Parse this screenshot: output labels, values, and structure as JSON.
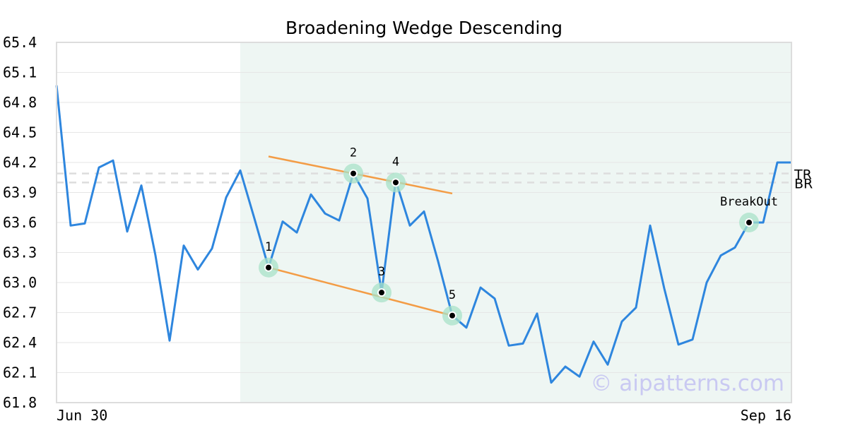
{
  "chart_data": {
    "type": "line",
    "title": "Broadening Wedge Descending",
    "ylim": [
      61.8,
      65.4
    ],
    "y_ticks": [
      "65.4",
      "65.1",
      "64.8",
      "64.5",
      "64.2",
      "63.9",
      "63.6",
      "63.3",
      "63.0",
      "62.7",
      "62.4",
      "62.1",
      "61.8"
    ],
    "x_tick_labels": [
      "Jun 30",
      "Sep 16"
    ],
    "series": [
      {
        "color": "#2e86de",
        "values": [
          64.97,
          63.57,
          63.59,
          64.15,
          64.22,
          63.51,
          63.97,
          63.27,
          62.42,
          63.37,
          63.13,
          63.34,
          63.85,
          64.12,
          63.64,
          63.15,
          63.61,
          63.5,
          63.88,
          63.69,
          63.62,
          64.09,
          63.84,
          62.9,
          64.02,
          63.57,
          63.71,
          63.21,
          62.67,
          62.55,
          62.95,
          62.84,
          62.37,
          62.39,
          62.69,
          62.0,
          62.16,
          62.06,
          62.41,
          62.18,
          62.61,
          62.75,
          63.57,
          62.94,
          62.38,
          62.43,
          63.0,
          63.27,
          63.35,
          63.6,
          63.6,
          64.2,
          64.2
        ]
      }
    ],
    "pattern_region": {
      "start_index": 13,
      "end_index": 52,
      "color": "#eef6f3"
    },
    "levels": [
      {
        "label": "TR",
        "value": 64.09
      },
      {
        "label": "BR",
        "value": 64.0
      }
    ],
    "trendlines": [
      {
        "name": "upper",
        "color": "#f39c45",
        "start": {
          "index": 15,
          "value": 64.26
        },
        "end": {
          "index": 28,
          "value": 63.89
        }
      },
      {
        "name": "lower",
        "color": "#f39c45",
        "start": {
          "index": 15,
          "value": 63.15
        },
        "end": {
          "index": 28,
          "value": 62.67
        }
      }
    ],
    "markers": [
      {
        "label": "1",
        "index": 15,
        "value": 63.15
      },
      {
        "label": "2",
        "index": 21,
        "value": 64.09
      },
      {
        "label": "3",
        "index": 23,
        "value": 62.9
      },
      {
        "label": "4",
        "index": 24,
        "value": 64.0
      },
      {
        "label": "5",
        "index": 28,
        "value": 62.67
      },
      {
        "label": "BreakOut",
        "index": 49,
        "value": 63.6
      }
    ],
    "watermark": "© aipatterns.com"
  }
}
